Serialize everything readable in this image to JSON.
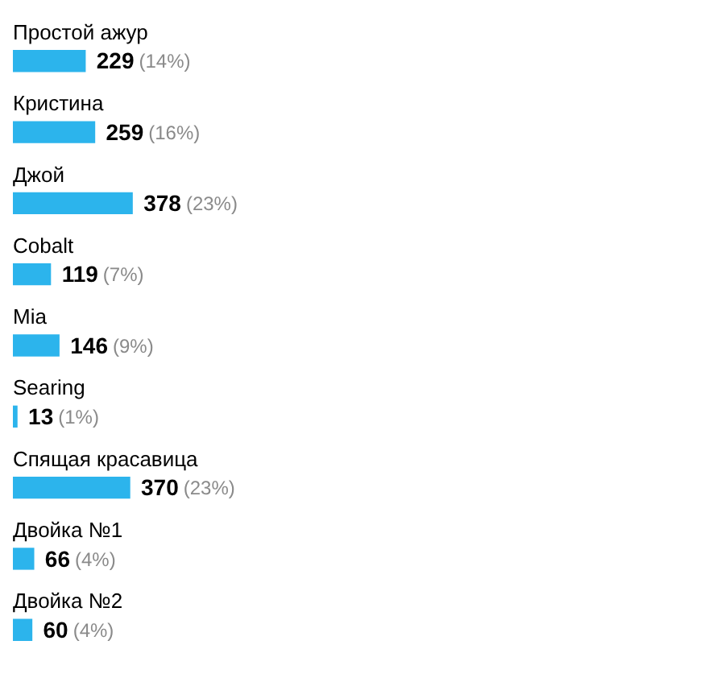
{
  "chart_data": {
    "type": "bar",
    "orientation": "horizontal",
    "categories": [
      "Простой ажур",
      "Кристина",
      "Джой",
      "Cobalt",
      "Mia",
      "Searing",
      "Спящая красавица",
      "Двойка №1",
      "Двойка №2"
    ],
    "values": [
      229,
      259,
      378,
      119,
      146,
      13,
      370,
      66,
      60
    ],
    "value_labels": [
      "229 (14%)",
      "259 (16%)",
      "378 (23%)",
      "119 (7%)",
      "146 (9%)",
      "13 (1%)",
      "370 (23%)",
      "66 (4%)",
      "60 (4%)"
    ],
    "color": "#2cb4ec",
    "tick_labels": "y"
  }
}
